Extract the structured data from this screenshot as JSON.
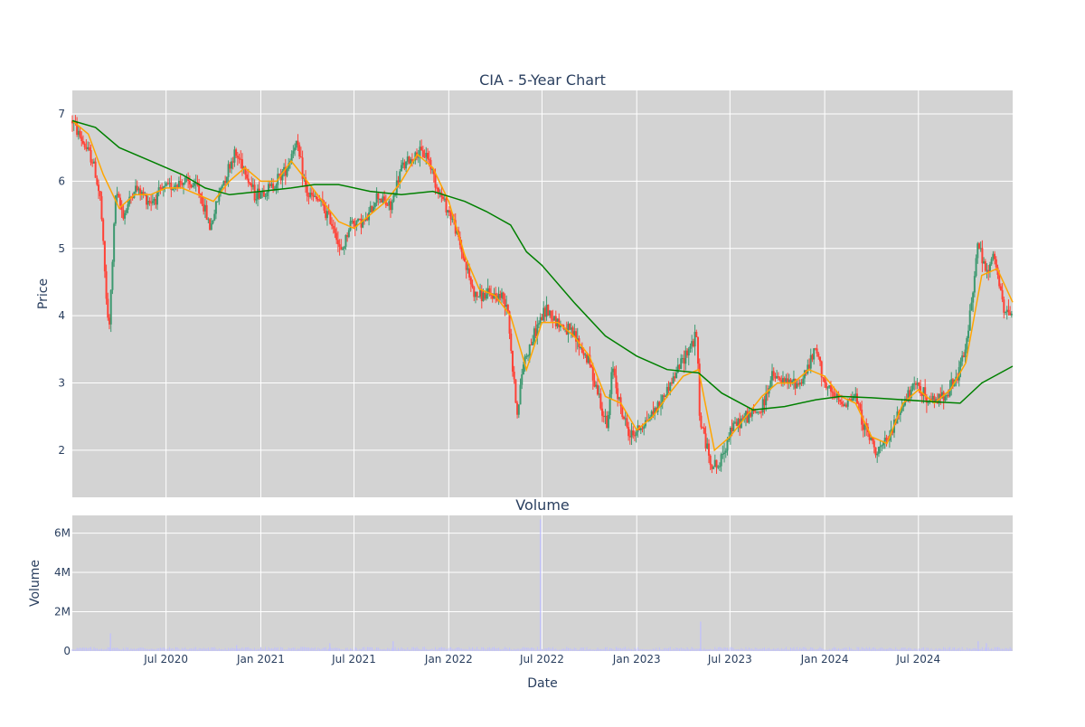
{
  "chart_data": [
    {
      "type": "candlestick",
      "title": "CIA - 5-Year Chart",
      "ylabel": "Price",
      "ylim": [
        1.3,
        7.35
      ],
      "yticks": [
        2,
        3,
        4,
        5,
        6,
        7
      ],
      "xlim": [
        "2020-01-01",
        "2024-12-31"
      ],
      "grid": true,
      "colors": {
        "up": "#3d9970",
        "down": "#ff4136",
        "ma_short": "#ffa500",
        "ma_long": "#008000",
        "plot_bg": "#d3d3d3"
      },
      "ohlc_keypoints": [
        [
          "2020-01-01",
          6.9
        ],
        [
          "2020-01-20",
          6.6
        ],
        [
          "2020-02-10",
          6.3
        ],
        [
          "2020-02-25",
          5.7
        ],
        [
          "2020-03-05",
          4.5
        ],
        [
          "2020-03-12",
          3.7
        ],
        [
          "2020-03-25",
          5.8
        ],
        [
          "2020-04-10",
          5.5
        ],
        [
          "2020-05-01",
          5.9
        ],
        [
          "2020-06-01",
          5.7
        ],
        [
          "2020-07-01",
          5.9
        ],
        [
          "2020-08-01",
          6.0
        ],
        [
          "2020-09-01",
          5.9
        ],
        [
          "2020-09-25",
          5.3
        ],
        [
          "2020-10-15",
          5.9
        ],
        [
          "2020-11-10",
          6.4
        ],
        [
          "2020-11-25",
          6.3
        ],
        [
          "2020-12-20",
          5.8
        ],
        [
          "2021-01-20",
          5.9
        ],
        [
          "2021-02-20",
          6.2
        ],
        [
          "2021-03-10",
          6.6
        ],
        [
          "2021-04-01",
          5.8
        ],
        [
          "2021-04-25",
          5.7
        ],
        [
          "2021-05-25",
          5.3
        ],
        [
          "2021-06-05",
          4.9
        ],
        [
          "2021-06-25",
          5.4
        ],
        [
          "2021-07-25",
          5.4
        ],
        [
          "2021-08-15",
          5.8
        ],
        [
          "2021-09-10",
          5.6
        ],
        [
          "2021-10-01",
          6.2
        ],
        [
          "2021-10-30",
          6.4
        ],
        [
          "2021-11-20",
          6.4
        ],
        [
          "2021-12-10",
          5.9
        ],
        [
          "2022-01-10",
          5.4
        ],
        [
          "2022-02-01",
          4.8
        ],
        [
          "2022-02-20",
          4.3
        ],
        [
          "2022-03-15",
          4.3
        ],
        [
          "2022-04-10",
          4.3
        ],
        [
          "2022-04-25",
          4.2
        ],
        [
          "2022-05-05",
          3.2
        ],
        [
          "2022-05-15",
          2.5
        ],
        [
          "2022-05-25",
          3.3
        ],
        [
          "2022-06-10",
          3.6
        ],
        [
          "2022-06-25",
          3.9
        ],
        [
          "2022-07-10",
          4.1
        ],
        [
          "2022-08-01",
          3.9
        ],
        [
          "2022-09-01",
          3.7
        ],
        [
          "2022-10-01",
          3.3
        ],
        [
          "2022-10-20",
          2.8
        ],
        [
          "2022-11-05",
          2.3
        ],
        [
          "2022-11-15",
          3.3
        ],
        [
          "2022-12-01",
          2.6
        ],
        [
          "2022-12-20",
          2.2
        ],
        [
          "2023-01-15",
          2.4
        ],
        [
          "2023-02-15",
          2.7
        ],
        [
          "2023-03-15",
          3.1
        ],
        [
          "2023-04-10",
          3.5
        ],
        [
          "2023-04-28",
          3.7
        ],
        [
          "2023-05-03",
          2.5
        ],
        [
          "2023-05-25",
          1.8
        ],
        [
          "2023-06-10",
          1.75
        ],
        [
          "2023-07-01",
          2.3
        ],
        [
          "2023-08-01",
          2.5
        ],
        [
          "2023-09-01",
          2.6
        ],
        [
          "2023-09-20",
          3.1
        ],
        [
          "2023-10-15",
          3.0
        ],
        [
          "2023-11-15",
          3.0
        ],
        [
          "2023-12-15",
          3.5
        ],
        [
          "2024-01-05",
          2.9
        ],
        [
          "2024-02-01",
          2.7
        ],
        [
          "2024-03-01",
          2.8
        ],
        [
          "2024-03-20",
          2.3
        ],
        [
          "2024-04-10",
          2.0
        ],
        [
          "2024-05-01",
          2.1
        ],
        [
          "2024-06-01",
          2.7
        ],
        [
          "2024-07-01",
          3.0
        ],
        [
          "2024-07-20",
          2.7
        ],
        [
          "2024-08-15",
          2.8
        ],
        [
          "2024-09-10",
          3.0
        ],
        [
          "2024-10-01",
          3.5
        ],
        [
          "2024-10-25",
          5.1
        ],
        [
          "2024-11-10",
          4.6
        ],
        [
          "2024-11-25",
          4.9
        ],
        [
          "2024-12-15",
          4.0
        ],
        [
          "2024-12-31",
          4.1
        ]
      ],
      "ma_short": [
        [
          "2020-01-01",
          6.9
        ],
        [
          "2020-02-01",
          6.7
        ],
        [
          "2020-03-01",
          6.1
        ],
        [
          "2020-04-01",
          5.6
        ],
        [
          "2020-05-01",
          5.8
        ],
        [
          "2020-06-01",
          5.8
        ],
        [
          "2020-07-01",
          5.9
        ],
        [
          "2020-08-01",
          5.9
        ],
        [
          "2020-09-01",
          5.8
        ],
        [
          "2020-10-01",
          5.7
        ],
        [
          "2020-11-01",
          6.0
        ],
        [
          "2020-12-01",
          6.2
        ],
        [
          "2021-01-01",
          6.0
        ],
        [
          "2021-02-01",
          6.0
        ],
        [
          "2021-03-01",
          6.3
        ],
        [
          "2021-04-01",
          6.0
        ],
        [
          "2021-05-01",
          5.7
        ],
        [
          "2021-06-01",
          5.4
        ],
        [
          "2021-07-01",
          5.3
        ],
        [
          "2021-08-01",
          5.5
        ],
        [
          "2021-09-01",
          5.7
        ],
        [
          "2021-10-01",
          6.0
        ],
        [
          "2021-11-01",
          6.4
        ],
        [
          "2021-12-01",
          6.2
        ],
        [
          "2022-01-01",
          5.7
        ],
        [
          "2022-02-01",
          4.9
        ],
        [
          "2022-03-01",
          4.4
        ],
        [
          "2022-04-01",
          4.3
        ],
        [
          "2022-05-01",
          4.0
        ],
        [
          "2022-06-01",
          3.2
        ],
        [
          "2022-07-01",
          3.9
        ],
        [
          "2022-08-01",
          3.9
        ],
        [
          "2022-09-01",
          3.7
        ],
        [
          "2022-10-01",
          3.4
        ],
        [
          "2022-11-01",
          2.8
        ],
        [
          "2022-12-01",
          2.7
        ],
        [
          "2023-01-01",
          2.3
        ],
        [
          "2023-02-01",
          2.5
        ],
        [
          "2023-03-01",
          2.8
        ],
        [
          "2023-04-01",
          3.1
        ],
        [
          "2023-05-01",
          3.2
        ],
        [
          "2023-06-01",
          2.0
        ],
        [
          "2023-07-01",
          2.2
        ],
        [
          "2023-08-01",
          2.5
        ],
        [
          "2023-09-01",
          2.8
        ],
        [
          "2023-10-01",
          3.0
        ],
        [
          "2023-11-01",
          3.0
        ],
        [
          "2023-12-01",
          3.2
        ],
        [
          "2024-01-01",
          3.1
        ],
        [
          "2024-02-01",
          2.8
        ],
        [
          "2024-03-01",
          2.7
        ],
        [
          "2024-04-01",
          2.2
        ],
        [
          "2024-05-01",
          2.1
        ],
        [
          "2024-06-01",
          2.7
        ],
        [
          "2024-07-01",
          2.9
        ],
        [
          "2024-08-01",
          2.7
        ],
        [
          "2024-09-01",
          2.9
        ],
        [
          "2024-10-01",
          3.3
        ],
        [
          "2024-11-01",
          4.6
        ],
        [
          "2024-12-01",
          4.7
        ],
        [
          "2024-12-31",
          4.2
        ]
      ],
      "ma_long": [
        [
          "2020-01-01",
          6.9
        ],
        [
          "2020-02-15",
          6.8
        ],
        [
          "2020-04-01",
          6.5
        ],
        [
          "2020-06-01",
          6.3
        ],
        [
          "2020-08-01",
          6.1
        ],
        [
          "2020-09-15",
          5.9
        ],
        [
          "2020-11-01",
          5.8
        ],
        [
          "2021-01-01",
          5.85
        ],
        [
          "2021-03-01",
          5.9
        ],
        [
          "2021-04-15",
          5.95
        ],
        [
          "2021-06-01",
          5.95
        ],
        [
          "2021-08-01",
          5.85
        ],
        [
          "2021-10-01",
          5.8
        ],
        [
          "2021-12-01",
          5.85
        ],
        [
          "2022-02-01",
          5.7
        ],
        [
          "2022-03-15",
          5.55
        ],
        [
          "2022-05-01",
          5.35
        ],
        [
          "2022-06-01",
          4.95
        ],
        [
          "2022-07-01",
          4.75
        ],
        [
          "2022-09-01",
          4.2
        ],
        [
          "2022-11-01",
          3.7
        ],
        [
          "2023-01-01",
          3.4
        ],
        [
          "2023-03-01",
          3.2
        ],
        [
          "2023-05-01",
          3.15
        ],
        [
          "2023-06-15",
          2.85
        ],
        [
          "2023-08-15",
          2.6
        ],
        [
          "2023-10-15",
          2.65
        ],
        [
          "2023-12-15",
          2.75
        ],
        [
          "2024-02-01",
          2.8
        ],
        [
          "2024-04-01",
          2.78
        ],
        [
          "2024-06-01",
          2.75
        ],
        [
          "2024-08-01",
          2.72
        ],
        [
          "2024-09-20",
          2.7
        ],
        [
          "2024-11-01",
          3.0
        ],
        [
          "2024-12-31",
          3.25
        ]
      ]
    },
    {
      "type": "bar",
      "title": "Volume",
      "xlabel": "Date",
      "ylabel": "Volume",
      "ylim": [
        0,
        6900000
      ],
      "yticks": [
        0,
        2000000,
        4000000,
        6000000
      ],
      "ytick_labels": [
        "0",
        "2M",
        "4M",
        "6M"
      ],
      "xticks": [
        "2020-07-01",
        "2021-01-01",
        "2021-07-01",
        "2022-01-01",
        "2022-07-01",
        "2023-01-01",
        "2023-07-01",
        "2024-01-01",
        "2024-07-01"
      ],
      "xtick_labels": [
        "Jul 2020",
        "Jan 2021",
        "Jul 2021",
        "Jan 2022",
        "Jul 2022",
        "Jan 2023",
        "Jul 2023",
        "Jan 2024",
        "Jul 2024"
      ],
      "bar_color": "#c0c0ff",
      "baseline_volume": 150000,
      "spikes": [
        [
          "2020-03-15",
          900000
        ],
        [
          "2020-11-15",
          300000
        ],
        [
          "2021-05-15",
          400000
        ],
        [
          "2021-09-15",
          500000
        ],
        [
          "2022-06-28",
          6700000
        ],
        [
          "2023-05-05",
          1500000
        ],
        [
          "2024-10-25",
          500000
        ],
        [
          "2024-11-10",
          400000
        ]
      ]
    }
  ]
}
